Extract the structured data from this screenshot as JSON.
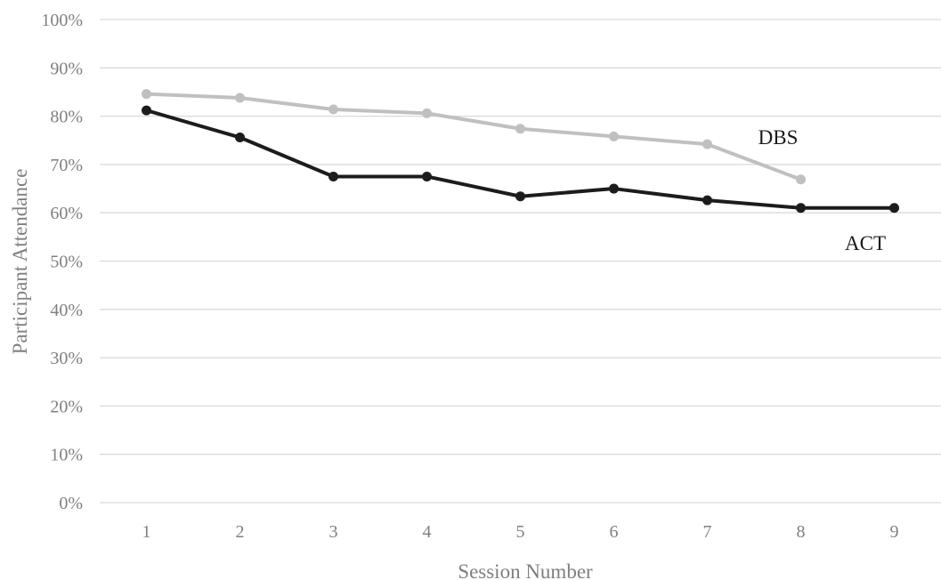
{
  "chart_data": {
    "type": "line",
    "title": "",
    "xlabel": "Session Number",
    "ylabel": "Participant Attendance",
    "x": [
      1,
      2,
      3,
      4,
      5,
      6,
      7,
      8,
      9
    ],
    "x_tick_labels": [
      "1",
      "2",
      "3",
      "4",
      "5",
      "6",
      "7",
      "8",
      "9"
    ],
    "y_tick_labels": [
      "0%",
      "10%",
      "20%",
      "30%",
      "40%",
      "50%",
      "60%",
      "70%",
      "80%",
      "90%",
      "100%"
    ],
    "ylim": [
      0,
      100
    ],
    "grid": true,
    "series": [
      {
        "name": "DBS",
        "color": "#c0c0c0",
        "values": [
          84.6,
          83.8,
          81.4,
          80.6,
          77.4,
          75.8,
          74.2,
          66.9,
          null
        ]
      },
      {
        "name": "ACT",
        "color": "#1c1c1c",
        "values": [
          81.2,
          75.6,
          67.5,
          67.5,
          63.4,
          65.0,
          62.6,
          61.0,
          61.0
        ]
      }
    ]
  }
}
